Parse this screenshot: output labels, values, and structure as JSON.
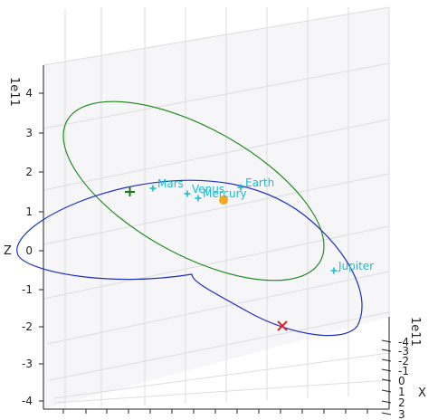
{
  "chart_data": {
    "type": "scatter",
    "projection": "3d",
    "grid": true,
    "xlabel": "X",
    "zlabel": "Z",
    "x_offset_text": "1e11",
    "z_offset_text": "1e11",
    "x_ticks": [
      "-4",
      "-3",
      "-2",
      "-1",
      "0",
      "1",
      "2",
      "3"
    ],
    "z_ticks": [
      "-4",
      "-3",
      "-2",
      "-1",
      "0",
      "1",
      "2",
      "3",
      "4"
    ],
    "zlim": [
      -4.2,
      4.6
    ],
    "planets": [
      {
        "name": "Mars",
        "marker": "+",
        "color": "#17becf"
      },
      {
        "name": "Venus",
        "marker": "+",
        "color": "#17becf"
      },
      {
        "name": "Mercury",
        "marker": "+",
        "color": "#17becf"
      },
      {
        "name": "Earth",
        "marker": "+",
        "color": "#17becf"
      },
      {
        "name": "Jupiter",
        "marker": "+",
        "color": "#17becf"
      }
    ],
    "sun": {
      "marker": "o",
      "color": "#f5a623"
    },
    "start_marker": {
      "marker": "+",
      "color": "#1a7a1a"
    },
    "end_marker": {
      "marker": "x",
      "color": "#d62728"
    },
    "orbits": [
      {
        "color": "#228b22"
      },
      {
        "color": "#1f2fbf"
      }
    ]
  }
}
